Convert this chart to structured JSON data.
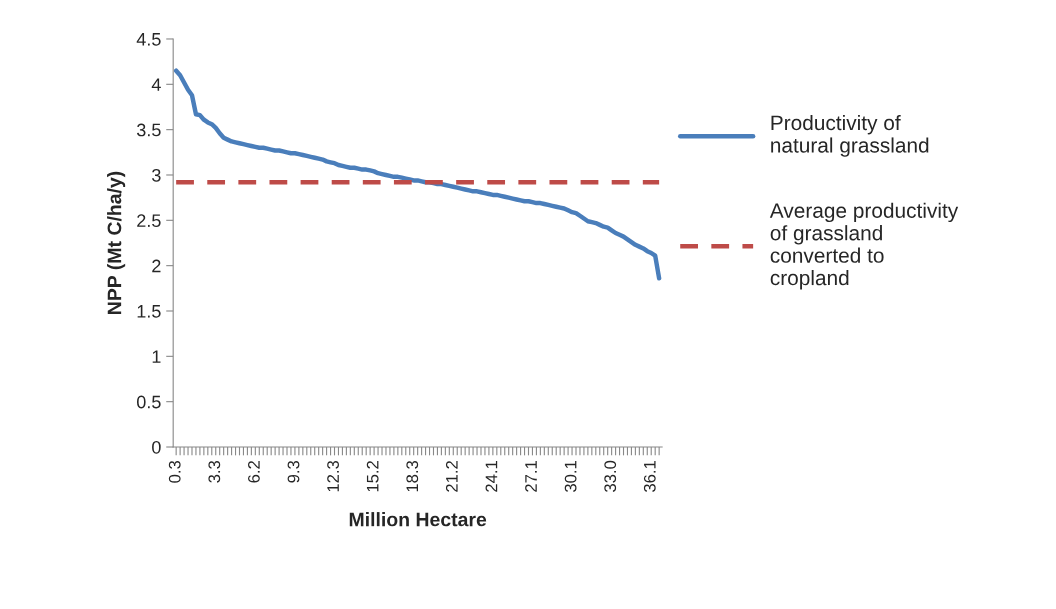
{
  "chart_data": {
    "type": "line",
    "xlabel": "Million Hectare",
    "ylabel": "NPP (Mt C/ha/y)",
    "categories": [
      "0.3",
      null,
      null,
      null,
      null,
      null,
      null,
      null,
      null,
      null,
      "3.3",
      null,
      null,
      null,
      null,
      null,
      null,
      null,
      null,
      null,
      "6.2",
      null,
      null,
      null,
      null,
      null,
      null,
      null,
      null,
      null,
      "9.3",
      null,
      null,
      null,
      null,
      null,
      null,
      null,
      null,
      null,
      "12.3",
      null,
      null,
      null,
      null,
      null,
      null,
      null,
      null,
      null,
      "15.2",
      null,
      null,
      null,
      null,
      null,
      null,
      null,
      null,
      null,
      "18.3",
      null,
      null,
      null,
      null,
      null,
      null,
      null,
      null,
      null,
      "21.2",
      null,
      null,
      null,
      null,
      null,
      null,
      null,
      null,
      null,
      "24.1",
      null,
      null,
      null,
      null,
      null,
      null,
      null,
      null,
      null,
      "27.1",
      null,
      null,
      null,
      null,
      null,
      null,
      null,
      null,
      null,
      "30.1",
      null,
      null,
      null,
      null,
      null,
      null,
      null,
      null,
      null,
      "33.0",
      null,
      null,
      null,
      null,
      null,
      null,
      null,
      null,
      null,
      "36.1",
      null,
      null
    ],
    "series": [
      {
        "name": "Productivity of natural grassland",
        "color": "#4a7ebb",
        "values": [
          4.15,
          4.1,
          4.02,
          3.94,
          3.88,
          3.67,
          3.66,
          3.61,
          3.58,
          3.56,
          3.52,
          3.46,
          3.41,
          3.39,
          3.37,
          3.36,
          3.35,
          3.34,
          3.33,
          3.32,
          3.31,
          3.3,
          3.3,
          3.29,
          3.28,
          3.27,
          3.27,
          3.26,
          3.25,
          3.24,
          3.24,
          3.23,
          3.22,
          3.21,
          3.2,
          3.19,
          3.18,
          3.17,
          3.15,
          3.14,
          3.13,
          3.11,
          3.1,
          3.09,
          3.08,
          3.08,
          3.07,
          3.06,
          3.06,
          3.05,
          3.04,
          3.02,
          3.01,
          3.0,
          2.99,
          2.98,
          2.98,
          2.97,
          2.96,
          2.95,
          2.94,
          2.94,
          2.93,
          2.92,
          2.92,
          2.91,
          2.9,
          2.9,
          2.89,
          2.88,
          2.87,
          2.86,
          2.85,
          2.84,
          2.83,
          2.82,
          2.82,
          2.81,
          2.8,
          2.79,
          2.78,
          2.78,
          2.77,
          2.76,
          2.75,
          2.74,
          2.73,
          2.72,
          2.71,
          2.71,
          2.7,
          2.69,
          2.69,
          2.68,
          2.67,
          2.66,
          2.65,
          2.64,
          2.63,
          2.61,
          2.59,
          2.58,
          2.55,
          2.52,
          2.49,
          2.48,
          2.47,
          2.45,
          2.43,
          2.42,
          2.39,
          2.36,
          2.34,
          2.32,
          2.29,
          2.26,
          2.23,
          2.21,
          2.19,
          2.16,
          2.14,
          2.11,
          1.86
        ]
      }
    ],
    "ref_lines": [
      {
        "axis": "y",
        "value": 2.92,
        "label": "Average productivity of grassland converted to cropland",
        "color": "#be4b48",
        "line_style": "dashed"
      }
    ],
    "ylim": [
      0,
      4.5
    ],
    "yticks": [
      0,
      0.5,
      1,
      1.5,
      2,
      2.5,
      3,
      3.5,
      4,
      4.5
    ],
    "grid": false,
    "legend": "right",
    "line_style": "solid",
    "marker": "none"
  }
}
